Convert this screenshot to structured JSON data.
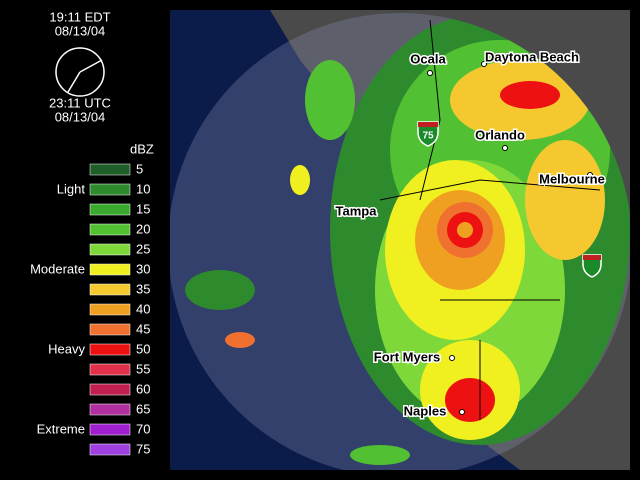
{
  "header": {
    "local_time": "19:11 EDT",
    "local_date": "08/13/04",
    "utc_time": "23:11 UTC",
    "utc_date": "08/13/04"
  },
  "legend": {
    "unit": "dBZ",
    "levels": [
      {
        "dbz": "5",
        "color": "#1f5f2a"
      },
      {
        "dbz": "10",
        "color": "#2d8a2d",
        "intensity": "Light"
      },
      {
        "dbz": "15",
        "color": "#3aaa2e"
      },
      {
        "dbz": "20",
        "color": "#52c033"
      },
      {
        "dbz": "25",
        "color": "#7fd83a"
      },
      {
        "dbz": "30",
        "color": "#f0f020",
        "intensity": "Moderate"
      },
      {
        "dbz": "35",
        "color": "#f5c830"
      },
      {
        "dbz": "40",
        "color": "#f0a020"
      },
      {
        "dbz": "45",
        "color": "#f07030"
      },
      {
        "dbz": "50",
        "color": "#ee1111",
        "intensity": "Heavy"
      },
      {
        "dbz": "55",
        "color": "#e0304a"
      },
      {
        "dbz": "60",
        "color": "#c02050"
      },
      {
        "dbz": "65",
        "color": "#b030a0"
      },
      {
        "dbz": "70",
        "color": "#a020d0",
        "intensity": "Extreme"
      },
      {
        "dbz": "75",
        "color": "#a040e0"
      }
    ]
  },
  "map": {
    "cities": [
      "Ocala",
      "Daytona Beach",
      "Orlando",
      "Melbourne",
      "Tampa",
      "Fort Myers",
      "Naples"
    ],
    "shield": "75"
  }
}
